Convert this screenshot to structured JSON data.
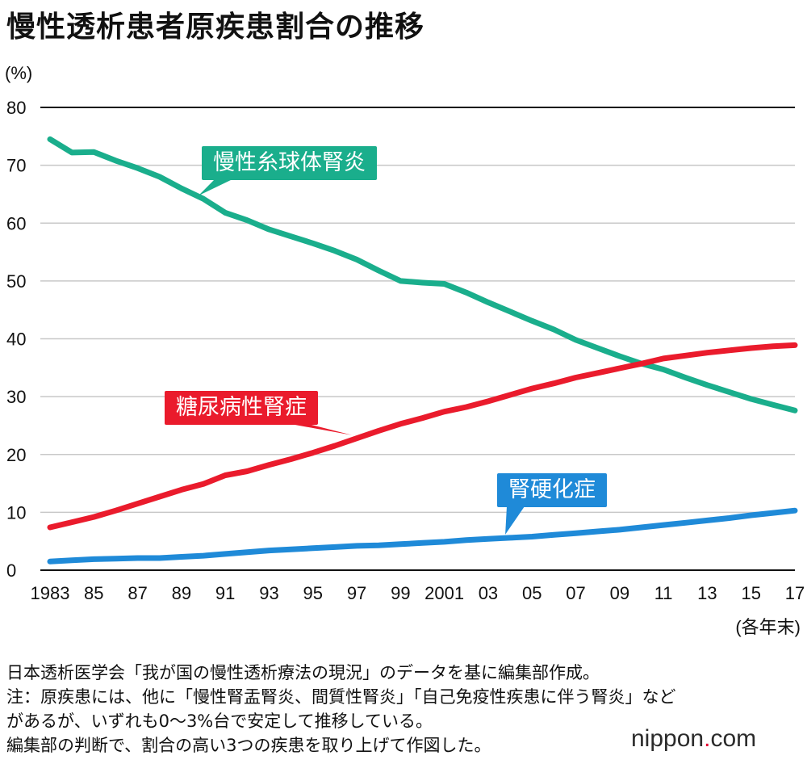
{
  "title": "慢性透析患者原疾患割合の推移",
  "logo": {
    "name_main": "nippon",
    "name_dot": ".",
    "name_tail": "com"
  },
  "notes": [
    "日本透析医学会「我が国の慢性透析療法の現況」のデータを基に編集部作成。",
    "注：原疾患には、他に「慢性腎盂腎炎、間質性腎炎」「自己免疫性疾患に伴う腎炎」など",
    "があるが、いずれも0〜3%台で安定して推移している。",
    "編集部の判断で、割合の高い3つの疾患を取り上げて作図した。"
  ],
  "chart_data": {
    "type": "line",
    "title": "慢性透析患者原疾患割合の推移",
    "ylabel": "(%)",
    "xlabel": "(各年末)",
    "ylim": [
      0,
      80
    ],
    "yticks": [
      "0",
      "10",
      "20",
      "30",
      "40",
      "50",
      "60",
      "70",
      "80"
    ],
    "x": [
      1983,
      1984,
      1985,
      1986,
      1987,
      1988,
      1989,
      1990,
      1991,
      1992,
      1993,
      1994,
      1995,
      1996,
      1997,
      1998,
      1999,
      2000,
      2001,
      2002,
      2003,
      2004,
      2005,
      2006,
      2007,
      2008,
      2009,
      2010,
      2011,
      2012,
      2013,
      2014,
      2015,
      2016,
      2017
    ],
    "xtick_labels": [
      {
        "year": 1983,
        "label": "1983"
      },
      {
        "year": 1985,
        "label": "85"
      },
      {
        "year": 1987,
        "label": "87"
      },
      {
        "year": 1989,
        "label": "89"
      },
      {
        "year": 1991,
        "label": "91"
      },
      {
        "year": 1993,
        "label": "93"
      },
      {
        "year": 1995,
        "label": "95"
      },
      {
        "year": 1997,
        "label": "97"
      },
      {
        "year": 1999,
        "label": "99"
      },
      {
        "year": 2001,
        "label": "2001"
      },
      {
        "year": 2003,
        "label": "03"
      },
      {
        "year": 2005,
        "label": "05"
      },
      {
        "year": 2007,
        "label": "07"
      },
      {
        "year": 2009,
        "label": "09"
      },
      {
        "year": 2011,
        "label": "11"
      },
      {
        "year": 2013,
        "label": "13"
      },
      {
        "year": 2015,
        "label": "15"
      },
      {
        "year": 2017,
        "label": "17"
      }
    ],
    "series": [
      {
        "name": "慢性糸球体腎炎",
        "color": "#1aae8c",
        "values": [
          74.5,
          72.2,
          72.3,
          70.8,
          69.5,
          68.0,
          66.0,
          64.2,
          61.8,
          60.5,
          58.9,
          57.7,
          56.5,
          55.2,
          53.7,
          51.8,
          50.0,
          49.7,
          49.5,
          48.0,
          46.3,
          44.7,
          43.1,
          41.6,
          39.8,
          38.4,
          37.0,
          35.7,
          34.7,
          33.3,
          32.0,
          30.8,
          29.6,
          28.6,
          27.6
        ]
      },
      {
        "name": "糖尿病性腎症",
        "color": "#ea1b2c",
        "values": [
          7.4,
          8.3,
          9.2,
          10.3,
          11.5,
          12.7,
          13.9,
          14.9,
          16.4,
          17.1,
          18.2,
          19.2,
          20.3,
          21.5,
          22.8,
          24.1,
          25.3,
          26.3,
          27.4,
          28.2,
          29.2,
          30.3,
          31.4,
          32.3,
          33.3,
          34.1,
          34.9,
          35.7,
          36.6,
          37.1,
          37.6,
          38.0,
          38.4,
          38.7,
          38.9
        ]
      },
      {
        "name": "腎硬化症",
        "color": "#1f8ad8",
        "values": [
          1.5,
          1.7,
          1.9,
          2.0,
          2.1,
          2.1,
          2.3,
          2.5,
          2.8,
          3.1,
          3.4,
          3.6,
          3.8,
          4.0,
          4.2,
          4.3,
          4.5,
          4.7,
          4.9,
          5.2,
          5.4,
          5.6,
          5.8,
          6.1,
          6.4,
          6.7,
          7.0,
          7.4,
          7.8,
          8.2,
          8.6,
          9.0,
          9.5,
          9.9,
          10.3
        ]
      }
    ]
  }
}
